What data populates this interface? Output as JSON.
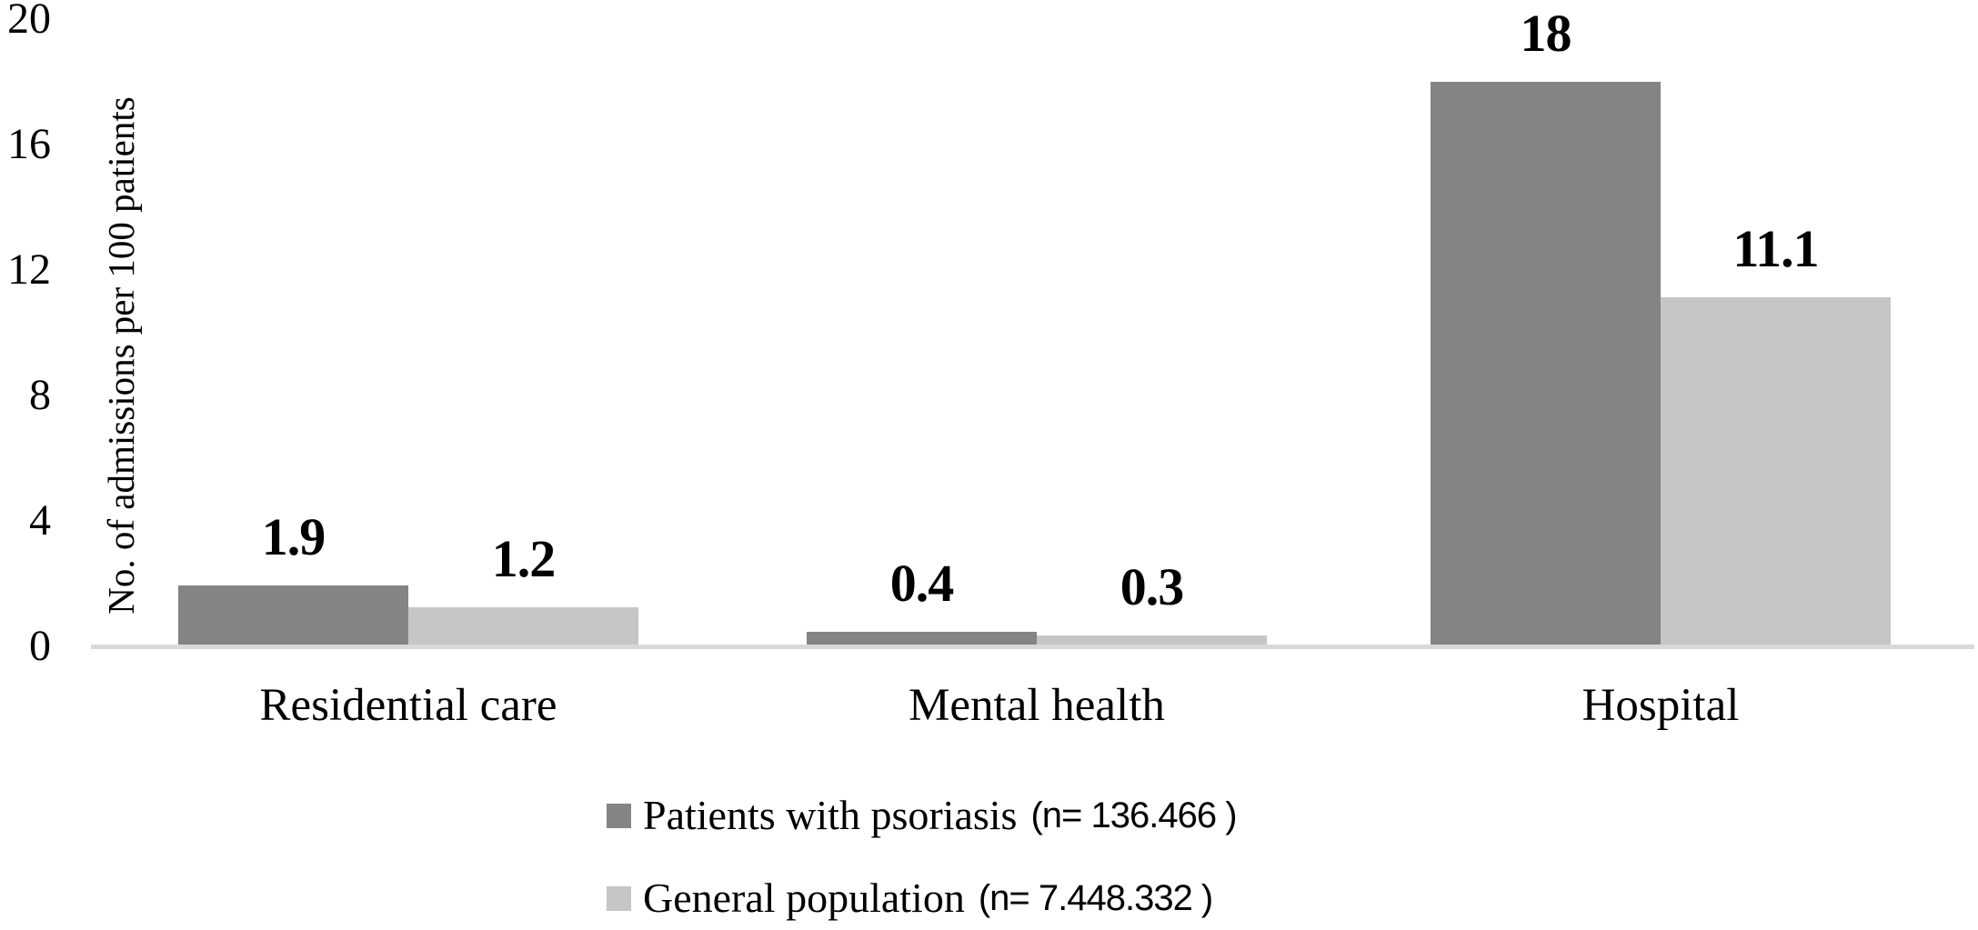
{
  "figure": {
    "background_color": "#ffffff",
    "axis_line_color": "#d9d9d9",
    "text_color": "#000000"
  },
  "chart_data": {
    "type": "bar",
    "title": "",
    "xlabel": "",
    "ylabel": "No. of admissions per 100 patients",
    "ylim": [
      0,
      20
    ],
    "yticks": [
      0,
      4,
      8,
      12,
      16,
      20
    ],
    "ytick_labels": [
      "0",
      "4",
      "8",
      "12",
      "16",
      "20"
    ],
    "grid": false,
    "legend_position": "bottom-center",
    "categories": [
      "Residential care",
      "Mental health",
      "Hospital"
    ],
    "series": [
      {
        "name": "Patients with psoriasis",
        "n_note": "(n= 136.466 )",
        "color": "#848484",
        "values": [
          1.9,
          0.4,
          18
        ],
        "value_labels": [
          "1.9",
          "0.4",
          "18"
        ]
      },
      {
        "name": "General population",
        "n_note": "(n= 7.448.332 )",
        "color": "#c6c6c6",
        "values": [
          1.2,
          0.3,
          11.1
        ],
        "value_labels": [
          "1.2",
          "0.3",
          "11.1"
        ]
      }
    ]
  }
}
